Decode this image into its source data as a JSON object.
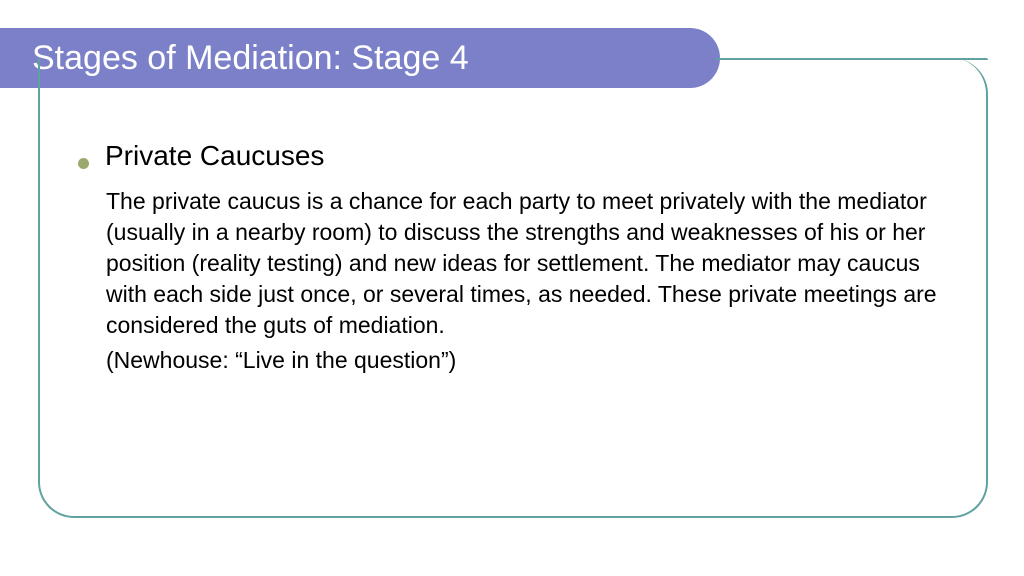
{
  "colors": {
    "title_bg": "#7c80c9",
    "title_text": "#ffffff",
    "frame_border": "#5fa2a0",
    "bullet": "#9aa96e",
    "body_text": "#000000"
  },
  "title": "Stages of Mediation: Stage 4",
  "bullet": {
    "heading": "Private Caucuses",
    "paragraph": "The private caucus is a chance for each party to meet privately with the mediator (usually in a nearby room) to discuss the strengths and weaknesses of his or her position (reality testing) and new ideas for settlement. The mediator may caucus with each side just once, or several times, as needed. These private meetings are considered the guts of mediation.",
    "citation": "(Newhouse: “Live in the question”)"
  },
  "typography": {
    "title_fontsize": 34,
    "heading_fontsize": 28,
    "body_fontsize": 23
  }
}
